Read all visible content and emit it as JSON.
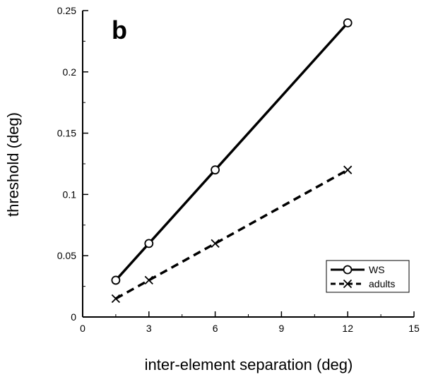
{
  "chart_data": {
    "type": "line",
    "panel_label": "b",
    "xlabel": "inter-element separation (deg)",
    "ylabel": "threshold (deg)",
    "xlim": [
      0,
      15
    ],
    "ylim": [
      0,
      0.25
    ],
    "x_ticks": [
      0,
      3,
      6,
      9,
      12,
      15
    ],
    "y_ticks": [
      0,
      0.05,
      0.1,
      0.15,
      0.2,
      0.25
    ],
    "x_tick_labels": [
      "0",
      "3",
      "6",
      "9",
      "12",
      "15"
    ],
    "y_tick_labels": [
      "0",
      "0.05",
      "0.1",
      "0.15",
      "0.2",
      "0.25"
    ],
    "grid": false,
    "legend_position": "bottom-right",
    "series": [
      {
        "name": "WS",
        "x": [
          1.5,
          3,
          6,
          12
        ],
        "y": [
          0.03,
          0.06,
          0.12,
          0.24
        ],
        "line_style": "solid",
        "marker": "circle",
        "color": "#000000"
      },
      {
        "name": "adults",
        "x": [
          1.5,
          3,
          6,
          12
        ],
        "y": [
          0.015,
          0.03,
          0.06,
          0.12
        ],
        "line_style": "dashed",
        "marker": "x",
        "color": "#000000"
      }
    ]
  }
}
